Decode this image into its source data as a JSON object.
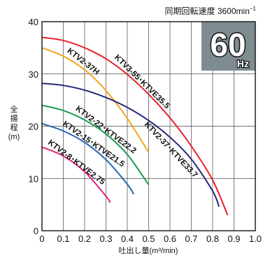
{
  "speed_note": "同期回転速度 3600min",
  "speed_sup": "−1",
  "badge": {
    "value": "60",
    "unit": "Hz",
    "bg_color": "#7e8c91"
  },
  "chart_data": {
    "type": "line",
    "xlabel": "吐出し量(m³/min)",
    "ylabel": [
      "全",
      "揚",
      "程",
      "(m)"
    ],
    "xlim": [
      0,
      1.0
    ],
    "ylim": [
      0,
      40
    ],
    "x_ticks": [
      "0",
      "0.1",
      "0.2",
      "0.3",
      "0.4",
      "0.5",
      "0.6",
      "0.7",
      "0.8",
      "0.9",
      "1.0"
    ],
    "y_ticks": [
      "0",
      "10",
      "20",
      "30",
      "40"
    ],
    "grid": true,
    "series": [
      {
        "name": "KTV3-55･KTVE35.5",
        "color": "#e8202a",
        "points": [
          [
            0,
            37.0
          ],
          [
            0.1,
            36.4
          ],
          [
            0.2,
            35.0
          ],
          [
            0.3,
            32.9
          ],
          [
            0.4,
            29.9
          ],
          [
            0.5,
            26.1
          ],
          [
            0.6,
            21.6
          ],
          [
            0.7,
            16.2
          ],
          [
            0.8,
            9.7
          ],
          [
            0.87,
            3.0
          ]
        ]
      },
      {
        "name": "KTV2-37H",
        "color": "#f6a21c",
        "points": [
          [
            0,
            35.0
          ],
          [
            0.1,
            33.4
          ],
          [
            0.2,
            30.8
          ],
          [
            0.3,
            26.8
          ],
          [
            0.4,
            21.5
          ],
          [
            0.5,
            15.0
          ]
        ]
      },
      {
        "name": "KTV2-37･KTVE33.7",
        "color": "#26297a",
        "points": [
          [
            0,
            28.2
          ],
          [
            0.1,
            27.8
          ],
          [
            0.2,
            26.9
          ],
          [
            0.3,
            25.5
          ],
          [
            0.4,
            23.6
          ],
          [
            0.5,
            21.1
          ],
          [
            0.6,
            17.9
          ],
          [
            0.7,
            13.7
          ],
          [
            0.8,
            7.6
          ],
          [
            0.83,
            4.6
          ]
        ]
      },
      {
        "name": "KTV2-22･KTVE22.2",
        "color": "#1c9c4f",
        "points": [
          [
            0,
            24.0
          ],
          [
            0.1,
            23.0
          ],
          [
            0.2,
            21.2
          ],
          [
            0.3,
            18.5
          ],
          [
            0.4,
            14.6
          ],
          [
            0.5,
            8.8
          ]
        ]
      },
      {
        "name": "KTV2-15･KTVE21.5",
        "color": "#2366b5",
        "points": [
          [
            0,
            20.5
          ],
          [
            0.1,
            19.1
          ],
          [
            0.2,
            16.9
          ],
          [
            0.3,
            13.6
          ],
          [
            0.4,
            8.9
          ],
          [
            0.43,
            7.0
          ]
        ]
      },
      {
        "name": "KTV2-8･KTVE2.75",
        "color": "#e8207a",
        "points": [
          [
            0,
            16.0
          ],
          [
            0.1,
            14.3
          ],
          [
            0.2,
            11.3
          ],
          [
            0.3,
            6.6
          ],
          [
            0.32,
            5.4
          ]
        ]
      }
    ]
  }
}
